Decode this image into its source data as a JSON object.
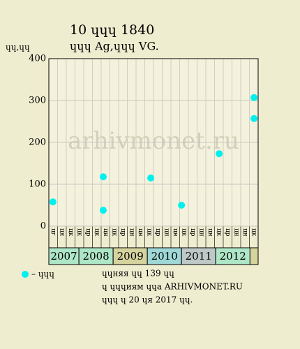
{
  "chart_data": {
    "type": "scatter",
    "title": "10 ɥɥɥ 1840",
    "subtitle": "ɥɥɥ Ag,ɥɥɥ VG.",
    "y_label": "ɥɥ,ɥɥ",
    "watermark": "arhivmonet.ru",
    "xlim": [
      2007.12,
      2013.24
    ],
    "xticks": [
      2007,
      2008,
      2009,
      2010,
      2011,
      2012
    ],
    "year_colors": [
      "#aee6c8",
      "#aee6c8",
      "#d6d49e",
      "#9fd8d6",
      "#bec8c6",
      "#aee6c8"
    ],
    "col_labels": [
      "цг",
      "ця",
      "цк",
      "цк",
      "цр",
      "цк",
      "цн",
      "цк",
      "цр",
      "цн",
      "цн",
      "цк",
      "цр",
      "цн",
      "цн",
      "цк",
      "цр",
      "цн",
      "цн",
      "цк",
      "цр",
      "цн",
      "цн",
      "цк"
    ],
    "ylim": [
      0,
      400
    ],
    "yticks": [
      0,
      100,
      200,
      300,
      400
    ],
    "grid": true,
    "series": [
      {
        "name": "– ɥɥɥ",
        "color": "#00f0f0",
        "x": [
          2007.24,
          2008.71,
          2008.71,
          2010.1,
          2011.0,
          2012.1,
          2013.12,
          2013.12
        ],
        "values": [
          58,
          118,
          38,
          115,
          50,
          173,
          307,
          257
        ]
      }
    ],
    "notes": [
      "ɥɥняя ɥɥ 139 ɥɥ",
      "ɥ ɥɥɥиям ɥɥа ARHIVMONET.RU",
      "ɥɥɥ ɥ 20 ɥя 2017 ɥɥ."
    ]
  }
}
